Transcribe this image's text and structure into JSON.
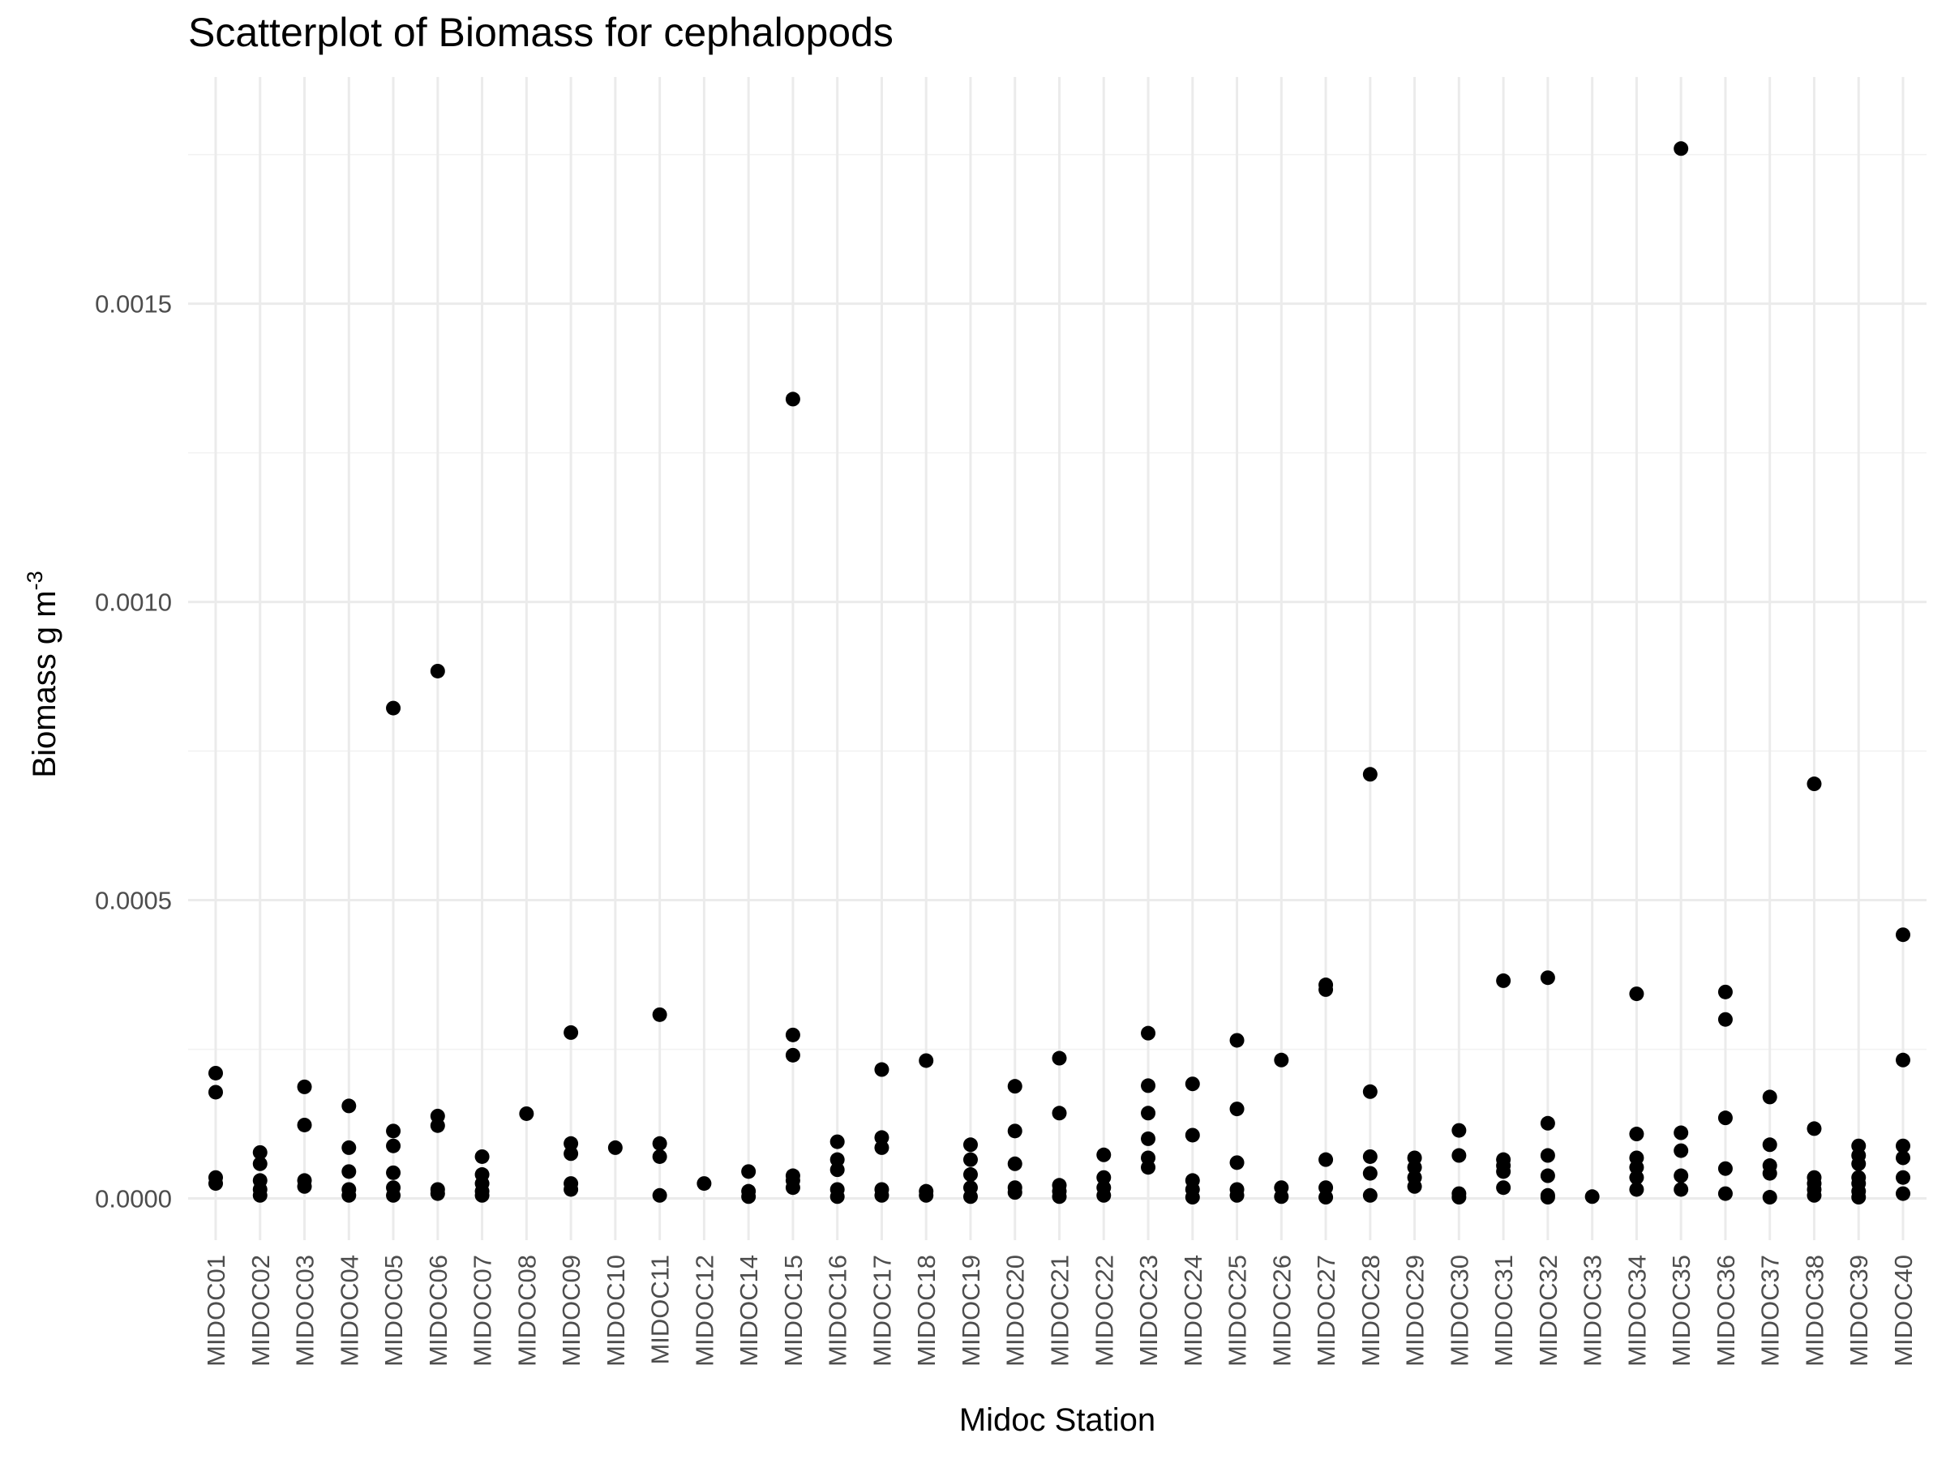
{
  "chart_data": {
    "type": "scatter",
    "title": "Scatterplot of Biomass for cephalopods",
    "xlabel": "Midoc Station",
    "ylabel": "Biomass g m",
    "ylabel_superscript": "-3",
    "ylim": [
      -7e-05,
      0.00188
    ],
    "y_ticks": [
      0,
      0.0005,
      0.001,
      0.0015
    ],
    "y_tick_labels": [
      "0.0000",
      "0.0005",
      "0.0010",
      "0.0015"
    ],
    "grid": true,
    "legend": "none",
    "point_color": "#000000",
    "categories": [
      "MIDOC01",
      "MIDOC02",
      "MIDOC03",
      "MIDOC04",
      "MIDOC05",
      "MIDOC06",
      "MIDOC07",
      "MIDOC08",
      "MIDOC09",
      "MIDOC10",
      "MIDOC11",
      "MIDOC12",
      "MIDOC14",
      "MIDOC15",
      "MIDOC16",
      "MIDOC17",
      "MIDOC18",
      "MIDOC19",
      "MIDOC20",
      "MIDOC21",
      "MIDOC22",
      "MIDOC23",
      "MIDOC24",
      "MIDOC25",
      "MIDOC26",
      "MIDOC27",
      "MIDOC28",
      "MIDOC29",
      "MIDOC30",
      "MIDOC31",
      "MIDOC32",
      "MIDOC33",
      "MIDOC34",
      "MIDOC35",
      "MIDOC36",
      "MIDOC37",
      "MIDOC38",
      "MIDOC39",
      "MIDOC40"
    ],
    "points": [
      {
        "x": "MIDOC01",
        "y": [
          0.00021,
          0.000178,
          3.5e-05,
          2.5e-05
        ]
      },
      {
        "x": "MIDOC02",
        "y": [
          7.7e-05,
          5.8e-05,
          3e-05,
          1.5e-05,
          5e-06
        ]
      },
      {
        "x": "MIDOC03",
        "y": [
          0.000187,
          0.000123,
          3e-05,
          2e-05
        ]
      },
      {
        "x": "MIDOC04",
        "y": [
          0.000155,
          8.5e-05,
          4.5e-05,
          1.5e-05,
          5e-06
        ]
      },
      {
        "x": "MIDOC05",
        "y": [
          0.000822,
          0.000113,
          8.8e-05,
          4.3e-05,
          1.8e-05,
          5e-06
        ]
      },
      {
        "x": "MIDOC06",
        "y": [
          0.000884,
          0.000138,
          0.000122,
          1.5e-05,
          8e-06
        ]
      },
      {
        "x": "MIDOC07",
        "y": [
          7e-05,
          4e-05,
          2.5e-05,
          1.2e-05,
          5e-06
        ]
      },
      {
        "x": "MIDOC08",
        "y": [
          0.000142
        ]
      },
      {
        "x": "MIDOC09",
        "y": [
          0.000278,
          9.2e-05,
          7.5e-05,
          2.5e-05,
          1.5e-05
        ]
      },
      {
        "x": "MIDOC10",
        "y": [
          8.5e-05
        ]
      },
      {
        "x": "MIDOC11",
        "y": [
          0.000308,
          9.2e-05,
          7e-05,
          5e-06
        ]
      },
      {
        "x": "MIDOC12",
        "y": [
          2.5e-05
        ]
      },
      {
        "x": "MIDOC14",
        "y": [
          4.5e-05,
          1.2e-05,
          3e-06
        ]
      },
      {
        "x": "MIDOC15",
        "y": [
          0.00134,
          0.000274,
          0.00024,
          3.8e-05,
          3e-05,
          1.8e-05
        ]
      },
      {
        "x": "MIDOC16",
        "y": [
          9.5e-05,
          6.5e-05,
          4.8e-05,
          1.5e-05,
          3e-06
        ]
      },
      {
        "x": "MIDOC17",
        "y": [
          0.000216,
          0.000102,
          8.5e-05,
          1.5e-05,
          5e-06
        ]
      },
      {
        "x": "MIDOC18",
        "y": [
          0.000231,
          1.2e-05,
          5e-06
        ]
      },
      {
        "x": "MIDOC19",
        "y": [
          9e-05,
          6.5e-05,
          4e-05,
          1.8e-05,
          3e-06
        ]
      },
      {
        "x": "MIDOC20",
        "y": [
          0.000188,
          0.000113,
          5.8e-05,
          1.8e-05,
          1e-05
        ]
      },
      {
        "x": "MIDOC21",
        "y": [
          0.000235,
          0.000143,
          2.2e-05,
          1.2e-05,
          3e-06
        ]
      },
      {
        "x": "MIDOC22",
        "y": [
          7.3e-05,
          3.5e-05,
          1.8e-05,
          5e-06
        ]
      },
      {
        "x": "MIDOC23",
        "y": [
          0.000277,
          0.000189,
          0.000143,
          0.0001,
          6.8e-05,
          5.2e-05
        ]
      },
      {
        "x": "MIDOC24",
        "y": [
          0.000192,
          0.000106,
          3e-05,
          1.5e-05,
          2e-06
        ]
      },
      {
        "x": "MIDOC25",
        "y": [
          0.000265,
          0.00015,
          6e-05,
          1.5e-05,
          5e-06
        ]
      },
      {
        "x": "MIDOC26",
        "y": [
          0.000232,
          1.8e-05,
          3e-06
        ]
      },
      {
        "x": "MIDOC27",
        "y": [
          0.000358,
          0.00035,
          6.5e-05,
          1.8e-05,
          2e-06
        ]
      },
      {
        "x": "MIDOC28",
        "y": [
          0.000711,
          0.000179,
          7e-05,
          4.2e-05,
          5e-06
        ]
      },
      {
        "x": "MIDOC29",
        "y": [
          6.8e-05,
          5.2e-05,
          3.5e-05,
          2e-05
        ]
      },
      {
        "x": "MIDOC30",
        "y": [
          0.000114,
          7.2e-05,
          8e-06,
          2e-06
        ]
      },
      {
        "x": "MIDOC31",
        "y": [
          0.000365,
          6.5e-05,
          5.5e-05,
          4.5e-05,
          1.8e-05
        ]
      },
      {
        "x": "MIDOC32",
        "y": [
          0.00037,
          0.000126,
          7.2e-05,
          3.8e-05,
          5e-06,
          2e-06
        ]
      },
      {
        "x": "MIDOC33",
        "y": [
          3e-06
        ]
      },
      {
        "x": "MIDOC34",
        "y": [
          0.000343,
          0.000108,
          6.8e-05,
          5.2e-05,
          3.5e-05,
          1.5e-05
        ]
      },
      {
        "x": "MIDOC35",
        "y": [
          0.00176,
          0.00011,
          8e-05,
          3.8e-05,
          1.5e-05
        ]
      },
      {
        "x": "MIDOC36",
        "y": [
          0.000346,
          0.0003,
          0.000135,
          5e-05,
          8e-06
        ]
      },
      {
        "x": "MIDOC37",
        "y": [
          0.00017,
          9e-05,
          5.5e-05,
          4.2e-05,
          2e-06
        ]
      },
      {
        "x": "MIDOC38",
        "y": [
          0.000695,
          0.000117,
          3.5e-05,
          2.5e-05,
          1.5e-05,
          5e-06
        ]
      },
      {
        "x": "MIDOC39",
        "y": [
          8.8e-05,
          7.2e-05,
          5.8e-05,
          3.5e-05,
          2.5e-05,
          1.2e-05,
          2e-06
        ]
      },
      {
        "x": "MIDOC40",
        "y": [
          0.000442,
          0.000232,
          8.8e-05,
          6.8e-05,
          3.5e-05,
          8e-06
        ]
      }
    ]
  }
}
